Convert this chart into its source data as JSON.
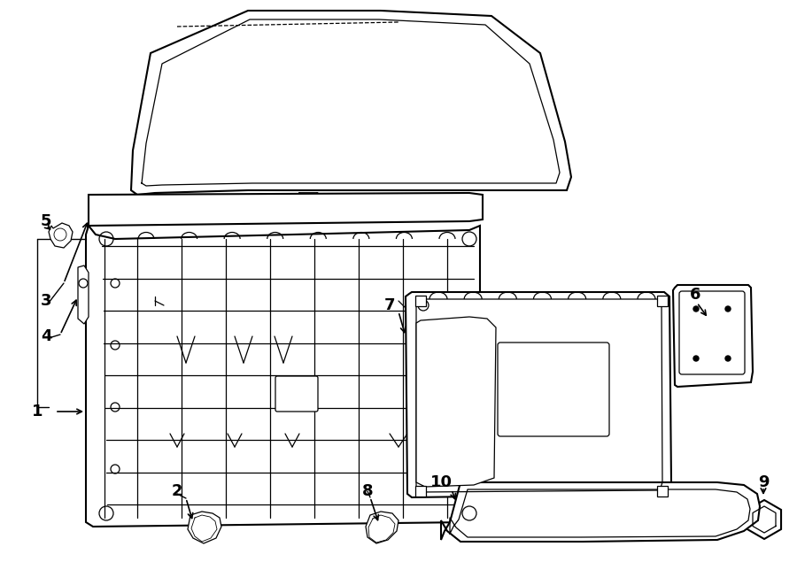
{
  "bg_color": "#ffffff",
  "line_color": "#000000",
  "lw_main": 1.5,
  "lw_thin": 0.9,
  "lw_thick": 2.0
}
